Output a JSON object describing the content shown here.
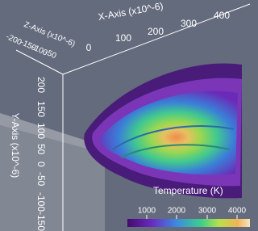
{
  "axes": {
    "x": {
      "title": "X-Axis (x10^-6)",
      "ticks": [
        "0",
        "100",
        "200",
        "300",
        "400"
      ]
    },
    "y": {
      "title": "Y-Axis (x10^-6)",
      "ticks": [
        "200",
        "150",
        "100",
        "50",
        "0",
        "-50",
        "-100",
        "-150"
      ]
    },
    "z": {
      "title": "Z-Axis (x10^-6)",
      "ticks": [
        "-200",
        "-150",
        "-100",
        "-50"
      ]
    }
  },
  "colorbar": {
    "title": "Temperature (K)",
    "ticks": [
      "1000",
      "2000",
      "3000",
      "4000"
    ]
  }
}
